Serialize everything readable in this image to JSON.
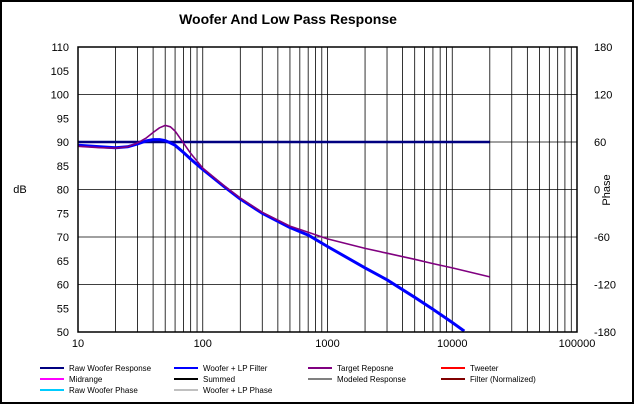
{
  "chart_data": {
    "type": "line",
    "title": "Woofer  And Low Pass Response",
    "ylabel": "dB",
    "y2label": "Phase",
    "xscale": "log",
    "xlim": [
      10,
      100000
    ],
    "ylim": [
      50,
      110
    ],
    "y2lim": [
      -180,
      180
    ],
    "grid": true,
    "x_ticks": [
      "10",
      "100",
      "1000",
      "10000",
      "100000"
    ],
    "y_ticks": [
      "50",
      "55",
      "60",
      "65",
      "70",
      "75",
      "80",
      "85",
      "90",
      "95",
      "100",
      "105",
      "110"
    ],
    "y2_ticks": [
      "-180",
      "-120",
      "-60",
      "0",
      "60",
      "120",
      "180"
    ],
    "series": [
      {
        "name": "Raw Woofer Response",
        "color": "#000080",
        "x": [
          10,
          20000
        ],
        "y": [
          90,
          90
        ]
      },
      {
        "name": "Woofer + LP  Filter",
        "color": "#0000ff",
        "x": [
          10,
          15,
          20,
          25,
          30,
          35,
          40,
          45,
          50,
          55,
          60,
          70,
          80,
          100,
          150,
          200,
          300,
          500,
          700,
          1000,
          2000,
          3000,
          5000,
          7000,
          10000,
          12500
        ],
        "y": [
          89.3,
          89.0,
          88.8,
          89.0,
          89.6,
          90.2,
          90.5,
          90.5,
          90.3,
          89.8,
          89.3,
          87.8,
          86.4,
          84.2,
          80.5,
          78.0,
          75.0,
          72.0,
          70.4,
          68.0,
          63.5,
          61.0,
          57.3,
          54.8,
          52.0,
          50.2
        ]
      },
      {
        "name": "Target Reposne",
        "color": "#800080",
        "x": [
          10,
          15,
          20,
          25,
          30,
          35,
          40,
          45,
          50,
          55,
          60,
          70,
          80,
          100,
          150,
          200,
          300,
          500,
          700,
          1000,
          2000,
          3000,
          5000,
          7000,
          10000,
          20000
        ],
        "y": [
          89.1,
          88.8,
          88.7,
          89.0,
          89.8,
          90.8,
          92.0,
          93.0,
          93.5,
          93.2,
          92.3,
          89.8,
          87.6,
          84.5,
          80.7,
          78.2,
          75.2,
          72.3,
          71.0,
          69.6,
          67.6,
          66.6,
          65.3,
          64.4,
          63.5,
          61.6
        ]
      }
    ],
    "legend_position": "bottom",
    "legend": [
      {
        "name": "Raw Woofer Response",
        "color": "#000080"
      },
      {
        "name": "Woofer + LP  Filter",
        "color": "#0000ff"
      },
      {
        "name": "Target Reposne",
        "color": "#800080"
      },
      {
        "name": "Tweeter",
        "color": "#ff0000"
      },
      {
        "name": "Midrange",
        "color": "#ff00ff"
      },
      {
        "name": "Summed",
        "color": "#000000"
      },
      {
        "name": "Modeled Response",
        "color": "#808080"
      },
      {
        "name": "Filter (Normalized)",
        "color": "#800000"
      },
      {
        "name": "Raw Woofer Phase",
        "color": "#00ccff"
      },
      {
        "name": "Woofer + LP  Phase",
        "color": "#c0c0c0"
      }
    ]
  }
}
